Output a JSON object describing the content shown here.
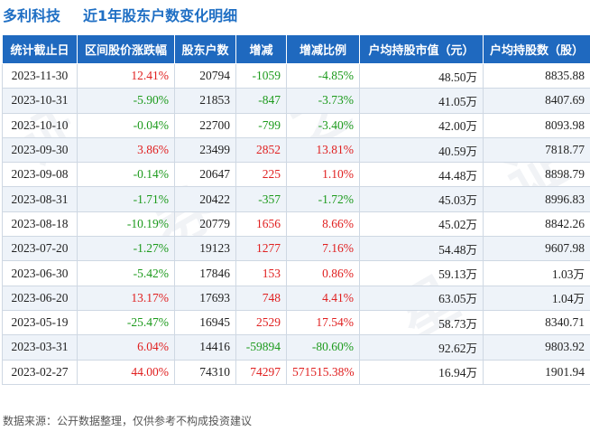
{
  "header": {
    "company": "多利科技",
    "subtitle": "近1年股东户数变化明细"
  },
  "table": {
    "columns": [
      "统计截止日",
      "区间股价涨跌幅",
      "股东户数",
      "增减",
      "增减比例",
      "户均持股市值（元）",
      "户均持股数（股）"
    ],
    "rows": [
      {
        "date": "2023-11-30",
        "pct": "12.41%",
        "pct_dir": "up",
        "holders": "20794",
        "change": "-1059",
        "change_dir": "down",
        "ratio": "-4.85%",
        "ratio_dir": "down",
        "value": "48.50",
        "value_unit": "万",
        "shares": "8835.88",
        "shares_unit": ""
      },
      {
        "date": "2023-10-31",
        "pct": "-5.90%",
        "pct_dir": "down",
        "holders": "21853",
        "change": "-847",
        "change_dir": "down",
        "ratio": "-3.73%",
        "ratio_dir": "down",
        "value": "41.05",
        "value_unit": "万",
        "shares": "8407.69",
        "shares_unit": ""
      },
      {
        "date": "2023-10-10",
        "pct": "-0.04%",
        "pct_dir": "down",
        "holders": "22700",
        "change": "-799",
        "change_dir": "down",
        "ratio": "-3.40%",
        "ratio_dir": "down",
        "value": "42.00",
        "value_unit": "万",
        "shares": "8093.98",
        "shares_unit": ""
      },
      {
        "date": "2023-09-30",
        "pct": "3.86%",
        "pct_dir": "up",
        "holders": "23499",
        "change": "2852",
        "change_dir": "up",
        "ratio": "13.81%",
        "ratio_dir": "up",
        "value": "40.59",
        "value_unit": "万",
        "shares": "7818.77",
        "shares_unit": ""
      },
      {
        "date": "2023-09-08",
        "pct": "-0.14%",
        "pct_dir": "down",
        "holders": "20647",
        "change": "225",
        "change_dir": "up",
        "ratio": "1.10%",
        "ratio_dir": "up",
        "value": "44.48",
        "value_unit": "万",
        "shares": "8898.79",
        "shares_unit": ""
      },
      {
        "date": "2023-08-31",
        "pct": "-1.71%",
        "pct_dir": "down",
        "holders": "20422",
        "change": "-357",
        "change_dir": "down",
        "ratio": "-1.72%",
        "ratio_dir": "down",
        "value": "45.03",
        "value_unit": "万",
        "shares": "8996.83",
        "shares_unit": ""
      },
      {
        "date": "2023-08-18",
        "pct": "-10.19%",
        "pct_dir": "down",
        "holders": "20779",
        "change": "1656",
        "change_dir": "up",
        "ratio": "8.66%",
        "ratio_dir": "up",
        "value": "45.02",
        "value_unit": "万",
        "shares": "8842.26",
        "shares_unit": ""
      },
      {
        "date": "2023-07-20",
        "pct": "-1.27%",
        "pct_dir": "down",
        "holders": "19123",
        "change": "1277",
        "change_dir": "up",
        "ratio": "7.16%",
        "ratio_dir": "up",
        "value": "54.48",
        "value_unit": "万",
        "shares": "9607.98",
        "shares_unit": ""
      },
      {
        "date": "2023-06-30",
        "pct": "-5.42%",
        "pct_dir": "down",
        "holders": "17846",
        "change": "153",
        "change_dir": "up",
        "ratio": "0.86%",
        "ratio_dir": "up",
        "value": "59.13",
        "value_unit": "万",
        "shares": "1.03",
        "shares_unit": "万"
      },
      {
        "date": "2023-06-20",
        "pct": "13.17%",
        "pct_dir": "up",
        "holders": "17693",
        "change": "748",
        "change_dir": "up",
        "ratio": "4.41%",
        "ratio_dir": "up",
        "value": "63.05",
        "value_unit": "万",
        "shares": "1.04",
        "shares_unit": "万"
      },
      {
        "date": "2023-05-19",
        "pct": "-25.47%",
        "pct_dir": "down",
        "holders": "16945",
        "change": "2529",
        "change_dir": "up",
        "ratio": "17.54%",
        "ratio_dir": "up",
        "value": "58.73",
        "value_unit": "万",
        "shares": "8340.71",
        "shares_unit": ""
      },
      {
        "date": "2023-03-31",
        "pct": "6.04%",
        "pct_dir": "up",
        "holders": "14416",
        "change": "-59894",
        "change_dir": "down",
        "ratio": "-80.60%",
        "ratio_dir": "down",
        "value": "92.62",
        "value_unit": "万",
        "shares": "9803.92",
        "shares_unit": ""
      },
      {
        "date": "2023-02-27",
        "pct": "44.00%",
        "pct_dir": "up",
        "holders": "74310",
        "change": "74297",
        "change_dir": "up",
        "ratio": "571515.38%",
        "ratio_dir": "up",
        "value": "16.94",
        "value_unit": "万",
        "shares": "1901.94",
        "shares_unit": ""
      }
    ]
  },
  "footer": {
    "source": "数据来源：公开数据整理，仅供参考不构成投资建议"
  },
  "colors": {
    "header_bg": "#1f69bf",
    "title": "#1f6fc4",
    "up": "#e02020",
    "down": "#1c9a1c"
  }
}
